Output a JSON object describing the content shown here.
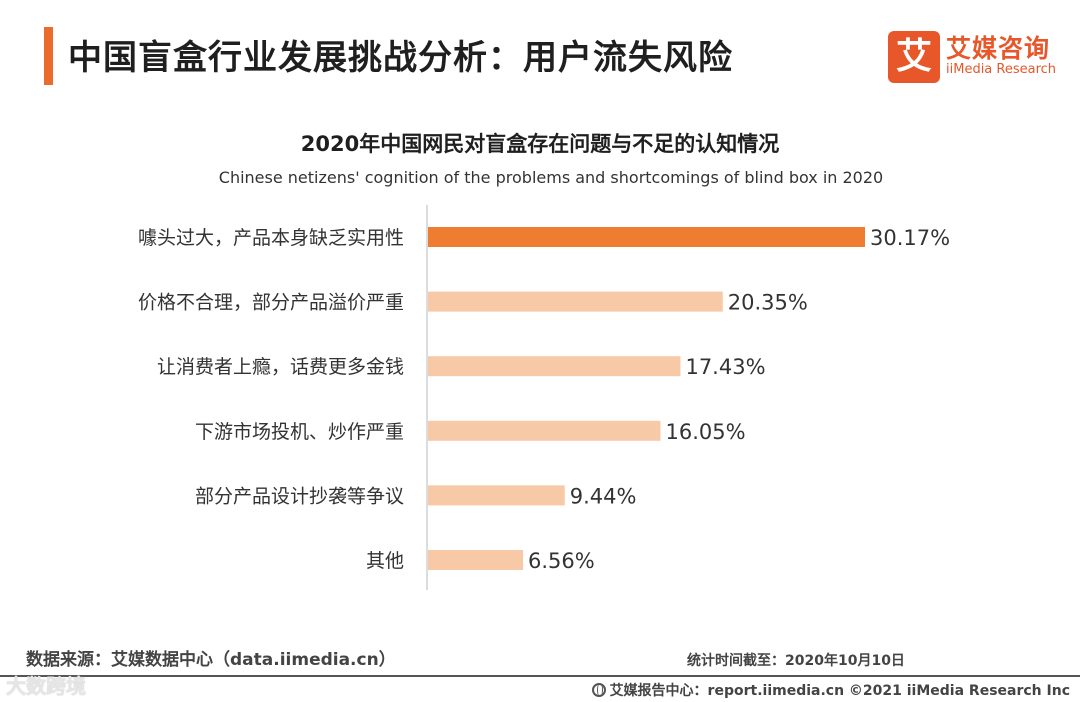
{
  "header": {
    "title": "中国盲盒行业发展挑战分析：用户流失风险",
    "logo_mark": "艾",
    "logo_cn": "艾媒咨询",
    "logo_en": "iiMedia Research"
  },
  "chart_data": {
    "type": "bar",
    "orientation": "horizontal",
    "title": "2020年中国网民对盲盒存在问题与不足的认知情况",
    "subtitle": "Chinese netizens' cognition of the problems and shortcomings of blind box in 2020",
    "categories": [
      "噱头过大，产品本身缺乏实用性",
      "价格不合理，部分产品溢价严重",
      "让消费者上瘾，话费更多金钱",
      "下游市场投机、炒作严重",
      "部分产品设计抄袭等争议",
      "其他"
    ],
    "values": [
      30.17,
      20.35,
      17.43,
      16.05,
      9.44,
      6.56
    ],
    "value_labels": [
      "30.17%",
      "20.35%",
      "17.43%",
      "16.05%",
      "9.44%",
      "6.56%"
    ],
    "unit": "%",
    "xlim": [
      0,
      30.17
    ],
    "highlight_index": 0,
    "colors": {
      "highlight": "#ee7d32",
      "normal": "#f8c9a6"
    }
  },
  "footer": {
    "source": "数据来源：艾媒数据中心（data.iimedia.cn）",
    "stat_date": "统计时间截至：2020年10月10日",
    "watermark": "大数跨境",
    "report_center": "艾媒报告中心：report.iimedia.cn  ©2021  iiMedia Research  Inc"
  }
}
